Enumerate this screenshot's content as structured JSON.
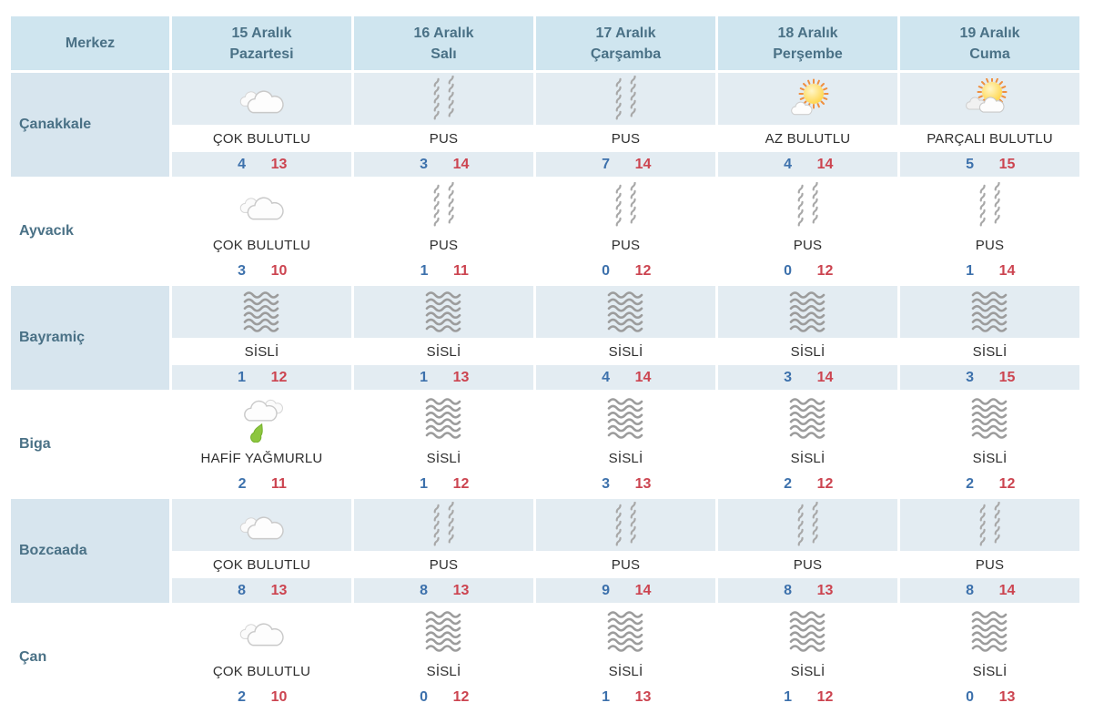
{
  "table": {
    "colors": {
      "header_bg": "#cfe5ef",
      "city_cell_bg": "#d7e5ee",
      "day_cell_bg": "#e3ecf2",
      "header_text": "#4a7186",
      "condition_text": "#2e2e2e",
      "min_temp": "#3d71ac",
      "max_temp": "#cc4450"
    },
    "header": {
      "merkez_label": "Merkez",
      "days": [
        {
          "date": "15 Aralık",
          "weekday": "Pazartesi"
        },
        {
          "date": "16 Aralık",
          "weekday": "Salı"
        },
        {
          "date": "17 Aralık",
          "weekday": "Çarşamba"
        },
        {
          "date": "18 Aralık",
          "weekday": "Perşembe"
        },
        {
          "date": "19 Aralık",
          "weekday": "Cuma"
        }
      ]
    },
    "rows": [
      {
        "city": "Çanakkale",
        "shaded": true,
        "days": [
          {
            "icon": "cloudy",
            "condition": "ÇOK BULUTLU",
            "min": 4,
            "max": 13
          },
          {
            "icon": "haze",
            "condition": "PUS",
            "min": 3,
            "max": 14
          },
          {
            "icon": "haze",
            "condition": "PUS",
            "min": 7,
            "max": 14
          },
          {
            "icon": "mostly-sunny",
            "condition": "AZ BULUTLU",
            "min": 4,
            "max": 14
          },
          {
            "icon": "partly-cloudy",
            "condition": "PARÇALI BULUTLU",
            "min": 5,
            "max": 15
          }
        ]
      },
      {
        "city": "Ayvacık",
        "shaded": false,
        "days": [
          {
            "icon": "cloudy",
            "condition": "ÇOK BULUTLU",
            "min": 3,
            "max": 10
          },
          {
            "icon": "haze",
            "condition": "PUS",
            "min": 1,
            "max": 11
          },
          {
            "icon": "haze",
            "condition": "PUS",
            "min": 0,
            "max": 12
          },
          {
            "icon": "haze",
            "condition": "PUS",
            "min": 0,
            "max": 12
          },
          {
            "icon": "haze",
            "condition": "PUS",
            "min": 1,
            "max": 14
          }
        ]
      },
      {
        "city": "Bayramiç",
        "shaded": true,
        "days": [
          {
            "icon": "fog",
            "condition": "SİSLİ",
            "min": 1,
            "max": 12
          },
          {
            "icon": "fog",
            "condition": "SİSLİ",
            "min": 1,
            "max": 13
          },
          {
            "icon": "fog",
            "condition": "SİSLİ",
            "min": 4,
            "max": 14
          },
          {
            "icon": "fog",
            "condition": "SİSLİ",
            "min": 3,
            "max": 14
          },
          {
            "icon": "fog",
            "condition": "SİSLİ",
            "min": 3,
            "max": 15
          }
        ]
      },
      {
        "city": "Biga",
        "shaded": false,
        "days": [
          {
            "icon": "light-rain",
            "condition": "HAFİF YAĞMURLU",
            "min": 2,
            "max": 11
          },
          {
            "icon": "fog",
            "condition": "SİSLİ",
            "min": 1,
            "max": 12
          },
          {
            "icon": "fog",
            "condition": "SİSLİ",
            "min": 3,
            "max": 13
          },
          {
            "icon": "fog",
            "condition": "SİSLİ",
            "min": 2,
            "max": 12
          },
          {
            "icon": "fog",
            "condition": "SİSLİ",
            "min": 2,
            "max": 12
          }
        ]
      },
      {
        "city": "Bozcaada",
        "shaded": true,
        "days": [
          {
            "icon": "cloudy",
            "condition": "ÇOK BULUTLU",
            "min": 8,
            "max": 13
          },
          {
            "icon": "haze",
            "condition": "PUS",
            "min": 8,
            "max": 13
          },
          {
            "icon": "haze",
            "condition": "PUS",
            "min": 9,
            "max": 14
          },
          {
            "icon": "haze",
            "condition": "PUS",
            "min": 8,
            "max": 13
          },
          {
            "icon": "haze",
            "condition": "PUS",
            "min": 8,
            "max": 14
          }
        ]
      },
      {
        "city": "Çan",
        "shaded": false,
        "days": [
          {
            "icon": "cloudy",
            "condition": "ÇOK BULUTLU",
            "min": 2,
            "max": 10
          },
          {
            "icon": "fog",
            "condition": "SİSLİ",
            "min": 0,
            "max": 12
          },
          {
            "icon": "fog",
            "condition": "SİSLİ",
            "min": 1,
            "max": 13
          },
          {
            "icon": "fog",
            "condition": "SİSLİ",
            "min": 1,
            "max": 12
          },
          {
            "icon": "fog",
            "condition": "SİSLİ",
            "min": 0,
            "max": 13
          }
        ]
      }
    ]
  }
}
